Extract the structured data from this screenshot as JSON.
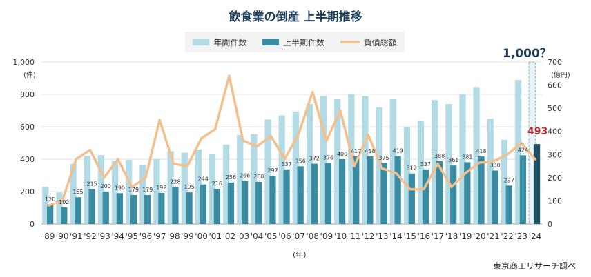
{
  "title": "飲食業の倒産 上半期推移",
  "source": "東京商工リサーチ調べ",
  "annotations": {
    "question": "1,000？",
    "highlight": "493"
  },
  "axes": {
    "left_unit": "(件)",
    "right_unit": "(億円)",
    "x_unit": "(年)"
  },
  "colors": {
    "annual": "#b3dbe6",
    "half": "#3a8ca2",
    "debt": "#f2c08e",
    "forecast_border": "#7fb3c4",
    "highlight_text": "#c0222b",
    "title": "#1f3f5a"
  },
  "chart_data": {
    "type": "bar",
    "categories": [
      "'89",
      "'90",
      "'91",
      "'92",
      "'93",
      "'94",
      "'95",
      "'96",
      "'97",
      "'98",
      "'99",
      "'00",
      "'01",
      "'02",
      "'03",
      "'04",
      "'05",
      "'06",
      "'07",
      "'08",
      "'09",
      "'10",
      "'11",
      "'12",
      "'13",
      "'14",
      "'15",
      "'16",
      "'17",
      "'18",
      "'19",
      "'20",
      "'21",
      "'22",
      "'23",
      "'24"
    ],
    "series": [
      {
        "name": "年間件数",
        "axis": "left",
        "kind": "bar",
        "values": [
          230,
          195,
          370,
          420,
          425,
          390,
          395,
          365,
          400,
          450,
          440,
          460,
          430,
          490,
          550,
          555,
          645,
          670,
          695,
          740,
          790,
          770,
          800,
          790,
          720,
          770,
          600,
          635,
          765,
          740,
          800,
          845,
          650,
          520,
          890,
          1000
        ]
      },
      {
        "name": "上半期件数",
        "axis": "left",
        "kind": "bar",
        "values": [
          120,
          102,
          165,
          215,
          200,
          190,
          179,
          179,
          192,
          228,
          195,
          244,
          216,
          256,
          266,
          260,
          297,
          337,
          356,
          372,
          376,
          400,
          417,
          418,
          375,
          419,
          312,
          337,
          388,
          361,
          381,
          418,
          330,
          237,
          424,
          493
        ]
      },
      {
        "name": "負債総額",
        "axis": "right",
        "kind": "line",
        "values": [
          80,
          100,
          280,
          320,
          200,
          280,
          160,
          200,
          450,
          260,
          250,
          370,
          410,
          640,
          360,
          335,
          380,
          280,
          390,
          570,
          360,
          490,
          250,
          385,
          240,
          220,
          150,
          150,
          260,
          160,
          220,
          265,
          270,
          300,
          350,
          280
        ]
      }
    ],
    "forecast_last": true,
    "ylim_left": [
      0,
      1000
    ],
    "yticks_left": [
      "0",
      "200",
      "400",
      "600",
      "800",
      "1,000"
    ],
    "ylim_right": [
      0,
      700
    ],
    "yticks_right": [
      "0",
      "100",
      "200",
      "300",
      "400",
      "500",
      "600",
      "700"
    ],
    "grid": true,
    "legend_position": "top-center"
  }
}
